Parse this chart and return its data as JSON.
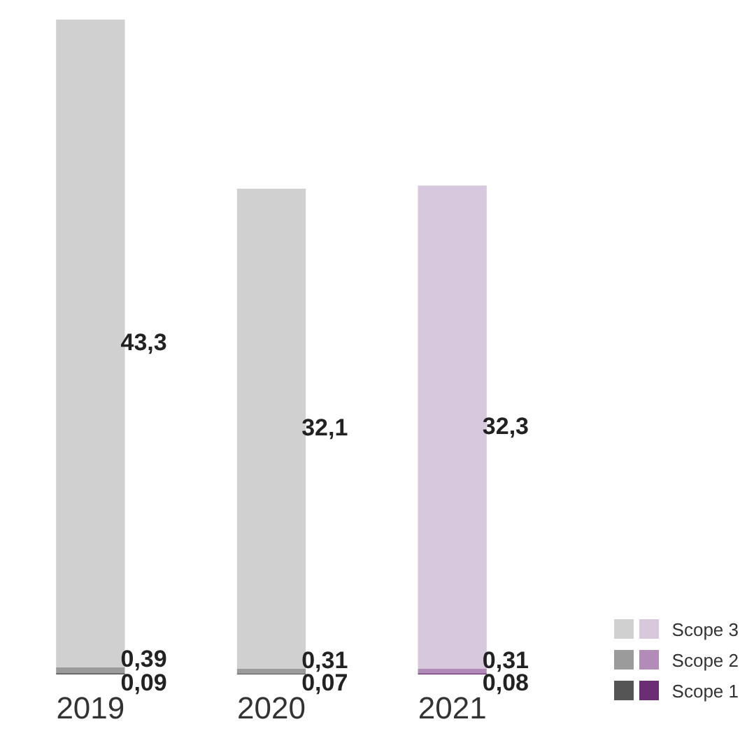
{
  "chart_data": {
    "type": "bar",
    "stacked": true,
    "categories": [
      "2019",
      "2020",
      "2021"
    ],
    "legend": "bottom right",
    "grid": false,
    "series": [
      {
        "name": "Scope 1",
        "colors": [
          "#555555",
          "#555555",
          "#6b2d74"
        ],
        "values": [
          0.09,
          0.07,
          0.08
        ],
        "value_labels": [
          "0,09",
          "0,07",
          "0,08"
        ]
      },
      {
        "name": "Scope 2",
        "colors": [
          "#9b9b9b",
          "#9b9b9b",
          "#b28bb8"
        ],
        "values": [
          0.39,
          0.31,
          0.31
        ],
        "value_labels": [
          "0,39",
          "0,31",
          "0,31"
        ]
      },
      {
        "name": "Scope 3",
        "colors": [
          "#d0d0d0",
          "#d0d0d0",
          "#d7c8de"
        ],
        "values": [
          43.3,
          32.1,
          32.3
        ],
        "value_labels": [
          "43,3",
          "32,1",
          "32,3"
        ]
      }
    ]
  }
}
